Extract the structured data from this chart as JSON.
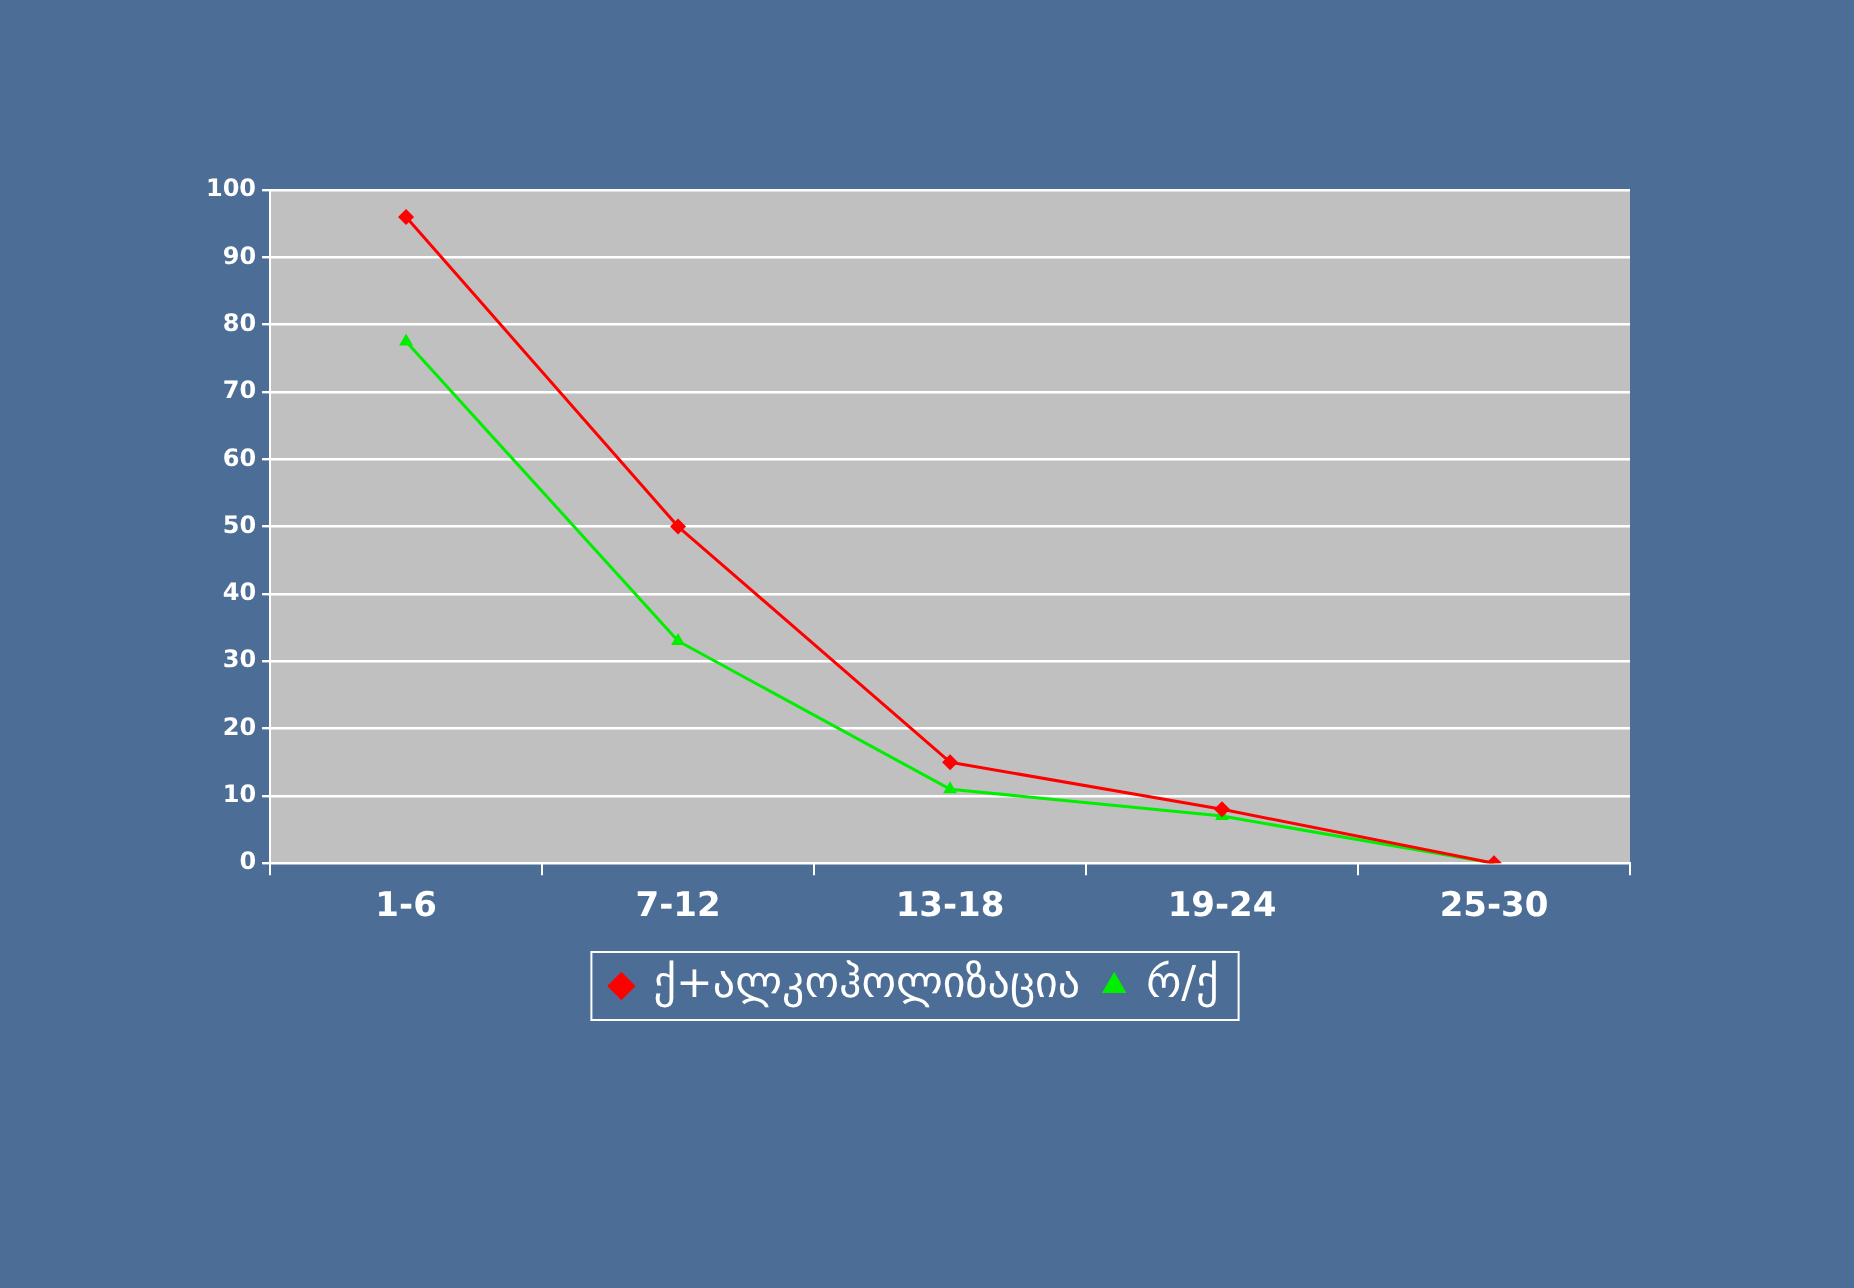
{
  "chart_data": {
    "type": "line",
    "categories": [
      "1-6",
      "7-12",
      "13-18",
      "19-24",
      "25-30"
    ],
    "series": [
      {
        "name": "ქ+ალკოჰოლიზაცია",
        "color": "#ff0000",
        "marker": "diamond",
        "values": [
          96,
          50,
          15,
          8,
          0
        ]
      },
      {
        "name": "რ/ქ",
        "color": "#00ee00",
        "marker": "triangle",
        "values": [
          77.5,
          33,
          11,
          7,
          0
        ]
      }
    ],
    "ylim": [
      0,
      100
    ],
    "yticks": [
      0,
      10,
      20,
      30,
      40,
      50,
      60,
      70,
      80,
      90,
      100
    ],
    "grid": "y",
    "legend": "bottom",
    "line_style": "solid"
  }
}
